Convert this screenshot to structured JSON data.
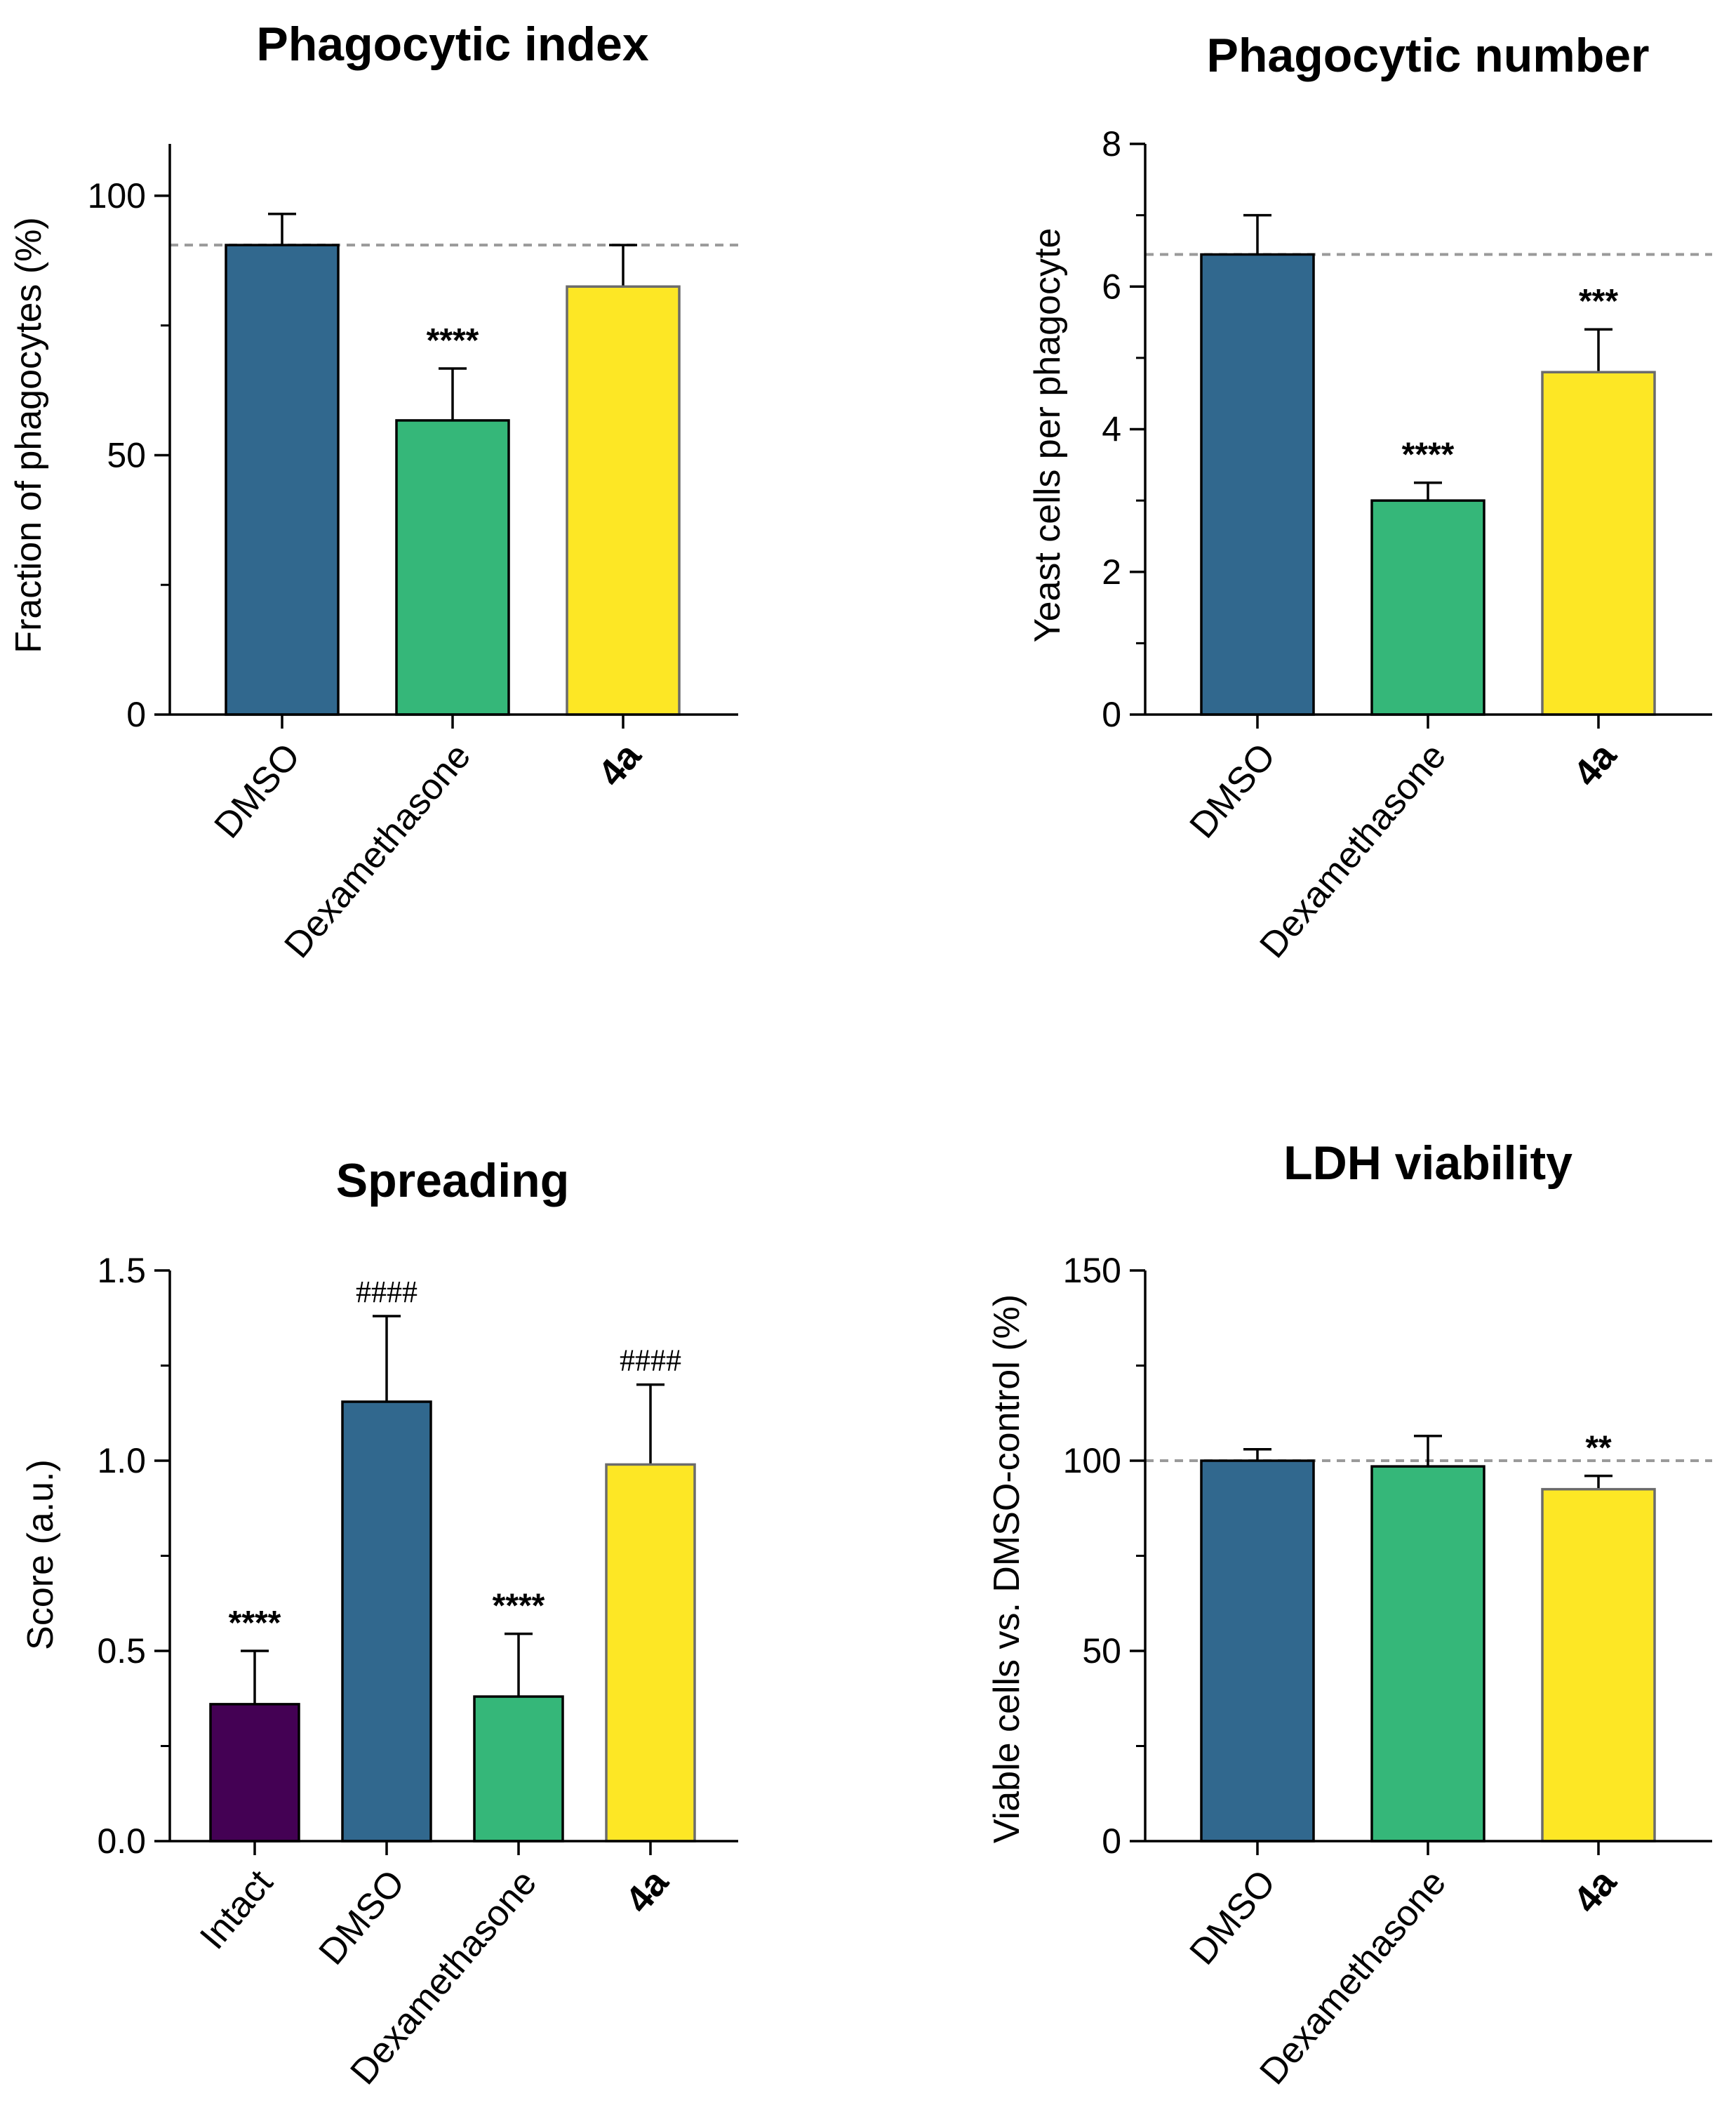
{
  "chart_data": [
    {
      "type": "bar",
      "title": "Phagocytic index",
      "ylabel": "Fraction of phagocytes (%)",
      "xlabel": "",
      "ylim": [
        0,
        110
      ],
      "yticks": [
        0,
        50,
        100
      ],
      "minor_yticks": [
        25,
        75
      ],
      "categories": [
        "DMSO",
        "Dexamethasone",
        "4a"
      ],
      "bold_categories": [
        "4a"
      ],
      "values": [
        90.5,
        56.7,
        82.5
      ],
      "errors": [
        6,
        10,
        8
      ],
      "colors": [
        "#31688e",
        "#35b779",
        "#fde725"
      ],
      "annotations": [
        "",
        "****",
        ""
      ],
      "reference_line": 90.5
    },
    {
      "type": "bar",
      "title": "Phagocytic number",
      "ylabel": "Yeast cells per phagocyte",
      "xlabel": "",
      "ylim": [
        0,
        8
      ],
      "yticks": [
        0,
        2,
        4,
        6,
        8
      ],
      "minor_yticks": [
        1,
        3,
        5,
        7
      ],
      "categories": [
        "DMSO",
        "Dexamethasone",
        "4a"
      ],
      "bold_categories": [
        "4a"
      ],
      "values": [
        6.45,
        3.0,
        4.8
      ],
      "errors": [
        0.55,
        0.25,
        0.6
      ],
      "colors": [
        "#31688e",
        "#35b779",
        "#fde725"
      ],
      "annotations": [
        "",
        "****",
        "***"
      ],
      "reference_line": 6.45
    },
    {
      "type": "bar",
      "title": "Spreading",
      "ylabel": "Score (a.u.)",
      "xlabel": "",
      "ylim": [
        0,
        1.5
      ],
      "yticks": [
        0.0,
        0.5,
        1.0,
        1.5
      ],
      "ytick_labels": [
        "0.0",
        "0.5",
        "1.0",
        "1.5"
      ],
      "minor_yticks": [
        0.25,
        0.75,
        1.25
      ],
      "categories": [
        "Intact",
        "DMSO",
        "Dexamethasone",
        "4a"
      ],
      "bold_categories": [
        "4a"
      ],
      "values": [
        0.36,
        1.155,
        0.38,
        0.99
      ],
      "errors": [
        0.14,
        0.225,
        0.165,
        0.21
      ],
      "colors": [
        "#440154",
        "#31688e",
        "#35b779",
        "#fde725"
      ],
      "annotations": [
        "****",
        "####",
        "****",
        "####"
      ],
      "reference_line": null
    },
    {
      "type": "bar",
      "title": "LDH viability",
      "ylabel": "Viable cells vs. DMSO-control (%)",
      "xlabel": "",
      "ylim": [
        0,
        150
      ],
      "yticks": [
        0,
        50,
        100,
        150
      ],
      "minor_yticks": [
        25,
        75,
        125
      ],
      "categories": [
        "DMSO",
        "Dexamethasone",
        "4a"
      ],
      "bold_categories": [
        "4a"
      ],
      "values": [
        100,
        98.5,
        92.5
      ],
      "errors": [
        3,
        8,
        3.5
      ],
      "colors": [
        "#31688e",
        "#35b779",
        "#fde725"
      ],
      "annotations": [
        "",
        "",
        "**"
      ],
      "reference_line": 100
    }
  ]
}
